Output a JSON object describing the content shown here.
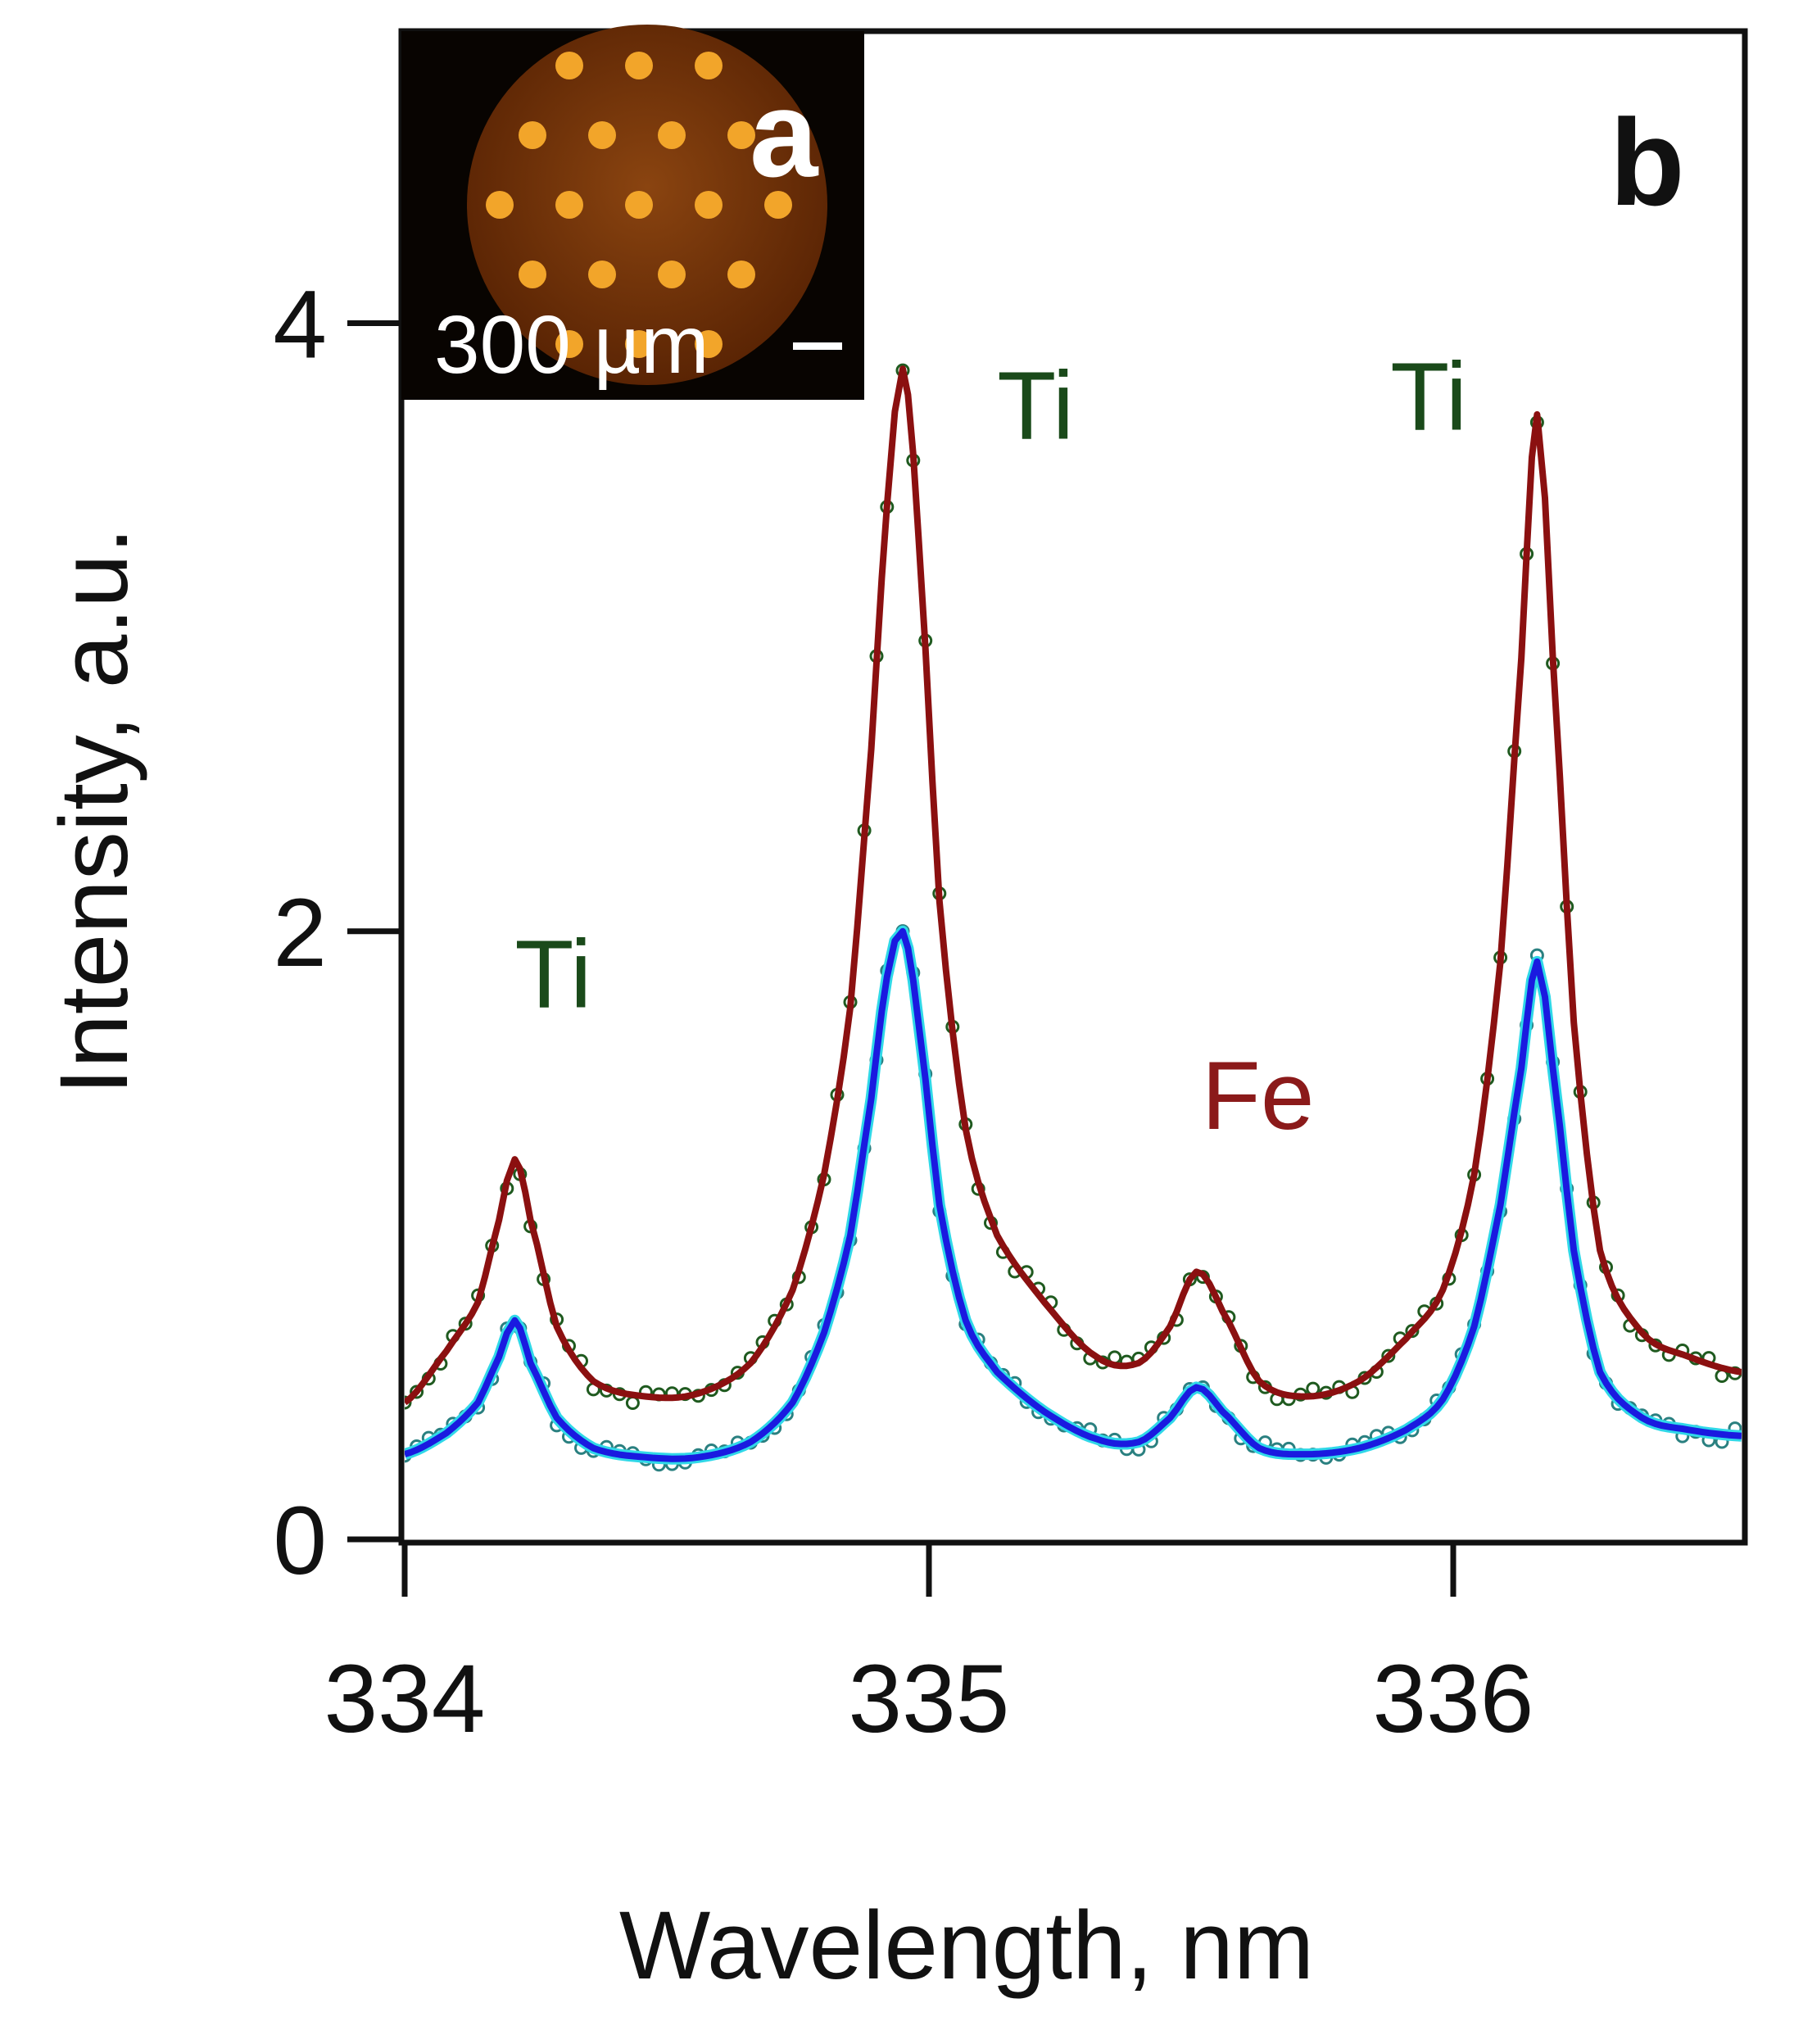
{
  "chart_data": {
    "type": "line",
    "xlabel": "Wavelength, nm",
    "ylabel": "Intensity, a.u.",
    "xlim": [
      334.0,
      336.55
    ],
    "ylim": [
      0,
      4.95
    ],
    "x_ticks": [
      334,
      335,
      336
    ],
    "x_tick_labels": [
      "334",
      "335",
      "336"
    ],
    "y_ticks": [
      0,
      2,
      4
    ],
    "y_tick_labels": [
      "0",
      "2",
      "4"
    ],
    "panel_label": "b",
    "inset": {
      "panel_label": "a",
      "scale_bar_label": "300 µm",
      "description_colors": {
        "background": "#000000",
        "disk": "#7a3a08",
        "spots": "#f0a020"
      }
    },
    "annotations": [
      {
        "text": "Ti",
        "x": 334.21,
        "y": 1.75,
        "color": "#1a4a1a"
      },
      {
        "text": "Ti",
        "x": 335.13,
        "y": 3.62,
        "color": "#1a4a1a"
      },
      {
        "text": "Fe",
        "x": 335.52,
        "y": 1.35,
        "color": "#8b1a1a"
      },
      {
        "text": "Ti",
        "x": 335.88,
        "y": 3.65,
        "color": "#1a4a1a"
      }
    ],
    "series": [
      {
        "name": "high-intensity spectrum (red)",
        "color": "#8b1010",
        "point_color": "#1f5a1f",
        "x": [
          334.0,
          334.08,
          334.14,
          334.18,
          334.21,
          334.24,
          334.29,
          334.36,
          334.46,
          334.56,
          334.66,
          334.74,
          334.8,
          334.85,
          334.89,
          334.92,
          334.95,
          334.98,
          335.02,
          335.07,
          335.13,
          335.22,
          335.32,
          335.4,
          335.46,
          335.51,
          335.56,
          335.63,
          335.72,
          335.82,
          335.91,
          335.98,
          336.04,
          336.09,
          336.13,
          336.16,
          336.19,
          336.23,
          336.28,
          336.36,
          336.45,
          336.55
        ],
        "values": [
          0.45,
          0.62,
          0.78,
          1.05,
          1.25,
          1.05,
          0.7,
          0.52,
          0.47,
          0.48,
          0.58,
          0.82,
          1.2,
          1.75,
          2.6,
          3.4,
          3.85,
          3.3,
          2.1,
          1.35,
          1.0,
          0.78,
          0.6,
          0.58,
          0.7,
          0.88,
          0.75,
          0.52,
          0.47,
          0.52,
          0.66,
          0.82,
          1.2,
          1.9,
          2.9,
          3.7,
          2.9,
          1.7,
          0.95,
          0.68,
          0.6,
          0.55
        ]
      },
      {
        "name": "low-intensity spectrum (blue)",
        "color": "#1a1ae0",
        "point_color": "#2a8080",
        "x": [
          334.0,
          334.08,
          334.14,
          334.18,
          334.21,
          334.24,
          334.29,
          334.36,
          334.46,
          334.56,
          334.66,
          334.74,
          334.8,
          334.85,
          334.89,
          334.92,
          334.95,
          334.98,
          335.02,
          335.07,
          335.13,
          335.22,
          335.32,
          335.4,
          335.46,
          335.51,
          335.56,
          335.63,
          335.72,
          335.82,
          335.91,
          335.98,
          336.04,
          336.09,
          336.13,
          336.16,
          336.19,
          336.23,
          336.28,
          336.36,
          336.45,
          336.55
        ],
        "values": [
          0.28,
          0.35,
          0.45,
          0.6,
          0.72,
          0.58,
          0.4,
          0.3,
          0.27,
          0.27,
          0.32,
          0.45,
          0.68,
          1.0,
          1.45,
          1.85,
          2.0,
          1.7,
          1.1,
          0.72,
          0.55,
          0.42,
          0.33,
          0.32,
          0.4,
          0.5,
          0.42,
          0.3,
          0.28,
          0.3,
          0.36,
          0.46,
          0.7,
          1.1,
          1.55,
          1.9,
          1.55,
          0.95,
          0.55,
          0.4,
          0.36,
          0.34
        ]
      }
    ]
  }
}
